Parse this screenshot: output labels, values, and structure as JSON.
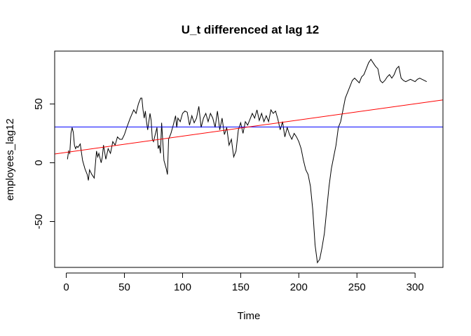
{
  "chart_data": {
    "type": "line",
    "title": "U_t differenced at lag 12",
    "xlabel": "Time",
    "ylabel": "employees_lag12",
    "xlim": [
      -10,
      324
    ],
    "ylim": [
      -89,
      95
    ],
    "x_ticks": [
      0,
      50,
      100,
      150,
      200,
      250,
      300
    ],
    "x_tick_labels": [
      "0",
      "50",
      "100",
      "150",
      "200",
      "250",
      "300"
    ],
    "y_ticks": [
      -50,
      0,
      50
    ],
    "y_tick_labels": [
      "-50",
      "0",
      "50"
    ],
    "grid": false,
    "legend": "none",
    "colors": {
      "series": "#000000",
      "mean_line": "#0000ff",
      "trend_line": "#ff0000",
      "axes": "#000000"
    },
    "series": [
      {
        "style": "line",
        "x": [
          1,
          2,
          3,
          4,
          5,
          6,
          7,
          8,
          9,
          10,
          12,
          14,
          16,
          18,
          19,
          20,
          22,
          24,
          26,
          27,
          28,
          30,
          31,
          32,
          34,
          36,
          38,
          40,
          42,
          44,
          46,
          48,
          50,
          52,
          55,
          58,
          60,
          62,
          64,
          65,
          66,
          67,
          68,
          69,
          70,
          72,
          73,
          74,
          75,
          76,
          78,
          79,
          80,
          81,
          82,
          84,
          86,
          87,
          88,
          90,
          92,
          94,
          95,
          96,
          98,
          100,
          102,
          104,
          106,
          108,
          110,
          112,
          114,
          116,
          118,
          120,
          122,
          124,
          126,
          128,
          130,
          132,
          134,
          136,
          138,
          140,
          142,
          144,
          146,
          148,
          150,
          152,
          154,
          156,
          158,
          160,
          162,
          164,
          166,
          168,
          170,
          172,
          174,
          176,
          178,
          180,
          182,
          184,
          186,
          188,
          190,
          192,
          194,
          196,
          198,
          200,
          202,
          204,
          206,
          208,
          210,
          212,
          214,
          216,
          218,
          220,
          222,
          224,
          226,
          228,
          230,
          232,
          234,
          236,
          238,
          240,
          242,
          244,
          246,
          248,
          250,
          252,
          254,
          256,
          258,
          260,
          262,
          264,
          266,
          268,
          270,
          272,
          274,
          276,
          278,
          280,
          282,
          284,
          286,
          288,
          290,
          292,
          294,
          296,
          298,
          300,
          302,
          304,
          306,
          308,
          310
        ],
        "y": [
          3,
          10,
          8,
          25,
          30,
          26,
          15,
          12,
          14,
          13,
          16,
          2,
          -5,
          -10,
          -15,
          -6,
          -10,
          -13,
          10,
          5,
          8,
          0,
          5,
          15,
          3,
          12,
          8,
          18,
          15,
          22,
          20,
          20,
          24,
          30,
          38,
          45,
          42,
          50,
          55,
          55,
          45,
          38,
          44,
          35,
          28,
          42,
          36,
          20,
          18,
          22,
          30,
          12,
          15,
          8,
          34,
          2,
          -5,
          -10,
          20,
          25,
          32,
          40,
          30,
          38,
          35,
          42,
          44,
          43,
          32,
          40,
          34,
          38,
          48,
          30,
          38,
          42,
          35,
          42,
          38,
          30,
          44,
          28,
          38,
          24,
          30,
          15,
          20,
          5,
          10,
          28,
          34,
          25,
          35,
          32,
          37,
          42,
          38,
          45,
          36,
          42,
          35,
          40,
          35,
          45,
          42,
          44,
          37,
          28,
          35,
          22,
          30,
          24,
          20,
          25,
          22,
          18,
          12,
          2,
          -6,
          -10,
          -20,
          -40,
          -70,
          -85,
          -82,
          -72,
          -60,
          -40,
          -20,
          -5,
          5,
          15,
          30,
          35,
          45,
          55,
          60,
          65,
          70,
          72,
          70,
          68,
          73,
          75,
          80,
          85,
          88,
          85,
          82,
          80,
          70,
          68,
          70,
          73,
          75,
          72,
          75,
          80,
          82,
          72,
          70,
          69,
          70,
          71,
          70,
          69,
          71,
          72,
          71,
          70,
          69
        ]
      },
      {
        "style": "hline",
        "y": 30.5
      },
      {
        "style": "abline",
        "x": [
          -10,
          324
        ],
        "y": [
          7.5,
          53.5
        ]
      }
    ]
  }
}
